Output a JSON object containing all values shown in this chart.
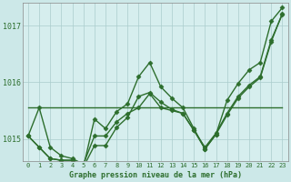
{
  "title": "Graphe pression niveau de la mer (hPa)",
  "background_color": "#cce8e8",
  "plot_bg_color": "#d6eeee",
  "grid_color": "#aacccc",
  "line_color": "#2d6e2d",
  "x_ticks": [
    0,
    1,
    2,
    3,
    4,
    5,
    6,
    7,
    8,
    9,
    10,
    11,
    12,
    13,
    14,
    15,
    16,
    17,
    18,
    19,
    20,
    21,
    22,
    23
  ],
  "ylim": [
    1014.6,
    1017.4
  ],
  "yticks": [
    1015,
    1016,
    1017
  ],
  "series": [
    {
      "y": [
        1015.05,
        1015.55,
        1014.85,
        1014.7,
        1014.65,
        1014.55,
        1015.05,
        1015.05,
        1015.3,
        1015.45,
        1015.55,
        1015.8,
        1015.55,
        1015.5,
        1015.45,
        1015.15,
        1014.85,
        1015.1,
        1015.45,
        1015.75,
        1015.95,
        1016.1,
        1016.75,
        1017.2
      ],
      "marker": "D",
      "ms": 2.5,
      "lw": 1.0
    },
    {
      "y": [
        1015.55,
        1015.55,
        1015.55,
        1015.55,
        1015.55,
        1015.55,
        1015.55,
        1015.55,
        1015.55,
        1015.55,
        1015.55,
        1015.55,
        1015.55,
        1015.55,
        1015.55,
        1015.55,
        1015.55,
        1015.55,
        1015.55,
        1015.55,
        1015.55,
        1015.55,
        1015.55,
        1015.55
      ],
      "marker": null,
      "ms": 0,
      "lw": 1.0
    },
    {
      "y": [
        1015.05,
        1014.85,
        1014.65,
        1014.62,
        1014.62,
        1014.5,
        1014.88,
        1014.88,
        1015.2,
        1015.38,
        1015.75,
        1015.82,
        1015.65,
        1015.52,
        1015.45,
        1015.15,
        1014.82,
        1015.08,
        1015.42,
        1015.72,
        1015.92,
        1016.08,
        1016.72,
        1017.22
      ],
      "marker": "D",
      "ms": 2.5,
      "lw": 1.0
    },
    {
      "y": [
        1015.05,
        1014.85,
        1014.65,
        1014.62,
        1014.62,
        1014.5,
        1015.35,
        1015.18,
        1015.48,
        1015.62,
        1016.1,
        1016.35,
        1015.92,
        1015.72,
        1015.55,
        1015.18,
        1014.82,
        1015.08,
        1015.68,
        1015.98,
        1016.22,
        1016.35,
        1017.08,
        1017.32
      ],
      "marker": "D",
      "ms": 2.5,
      "lw": 1.0
    }
  ]
}
